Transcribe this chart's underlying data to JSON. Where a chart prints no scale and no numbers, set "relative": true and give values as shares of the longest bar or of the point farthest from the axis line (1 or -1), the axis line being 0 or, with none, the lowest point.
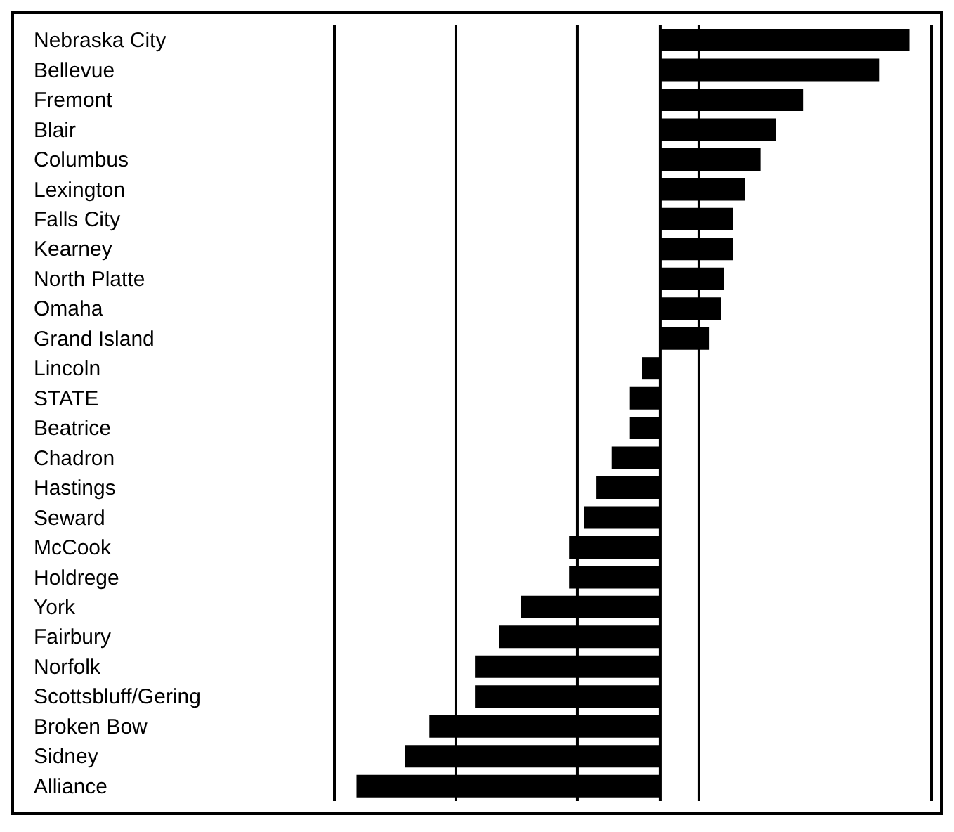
{
  "chart_data": {
    "type": "bar",
    "orientation": "horizontal",
    "relative": true,
    "grid": "x",
    "color": "#000000",
    "categories": [
      "Nebraska City",
      "Bellevue",
      "Fremont",
      "Blair",
      "Columbus",
      "Lexington",
      "Falls City",
      "Kearney",
      "North Platte",
      "Omaha",
      "Grand Island",
      "Lincoln",
      "STATE",
      "Beatrice",
      "Chadron",
      "Hastings",
      "Seward",
      "McCook",
      "Holdrege",
      "York",
      "Fairbury",
      "Norfolk",
      "Scottsbluff/Gering",
      "Broken Bow",
      "Sidney",
      "Alliance"
    ],
    "values": [
      0.82,
      0.72,
      0.47,
      0.38,
      0.33,
      0.28,
      0.24,
      0.24,
      0.21,
      0.2,
      0.16,
      -0.06,
      -0.1,
      -0.1,
      -0.16,
      -0.21,
      -0.25,
      -0.3,
      -0.3,
      -0.46,
      -0.53,
      -0.61,
      -0.61,
      -0.76,
      -0.84,
      -1
    ]
  }
}
